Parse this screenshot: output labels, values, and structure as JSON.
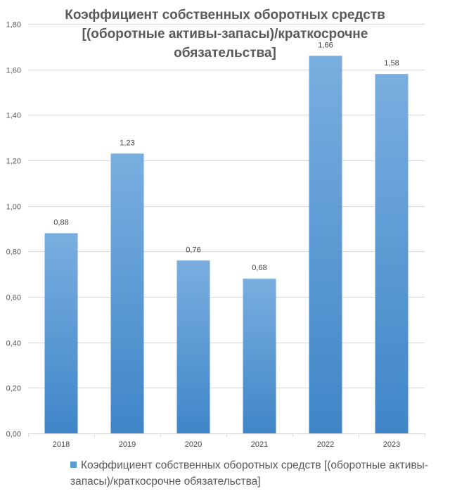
{
  "chart_data": {
    "type": "bar",
    "title_lines": [
      "Коэффициент собственных оборотных средств",
      "[(оборотные активы-запасы)/краткосрочне",
      "обязательства]"
    ],
    "categories": [
      "2018",
      "2019",
      "2020",
      "2021",
      "2022",
      "2023"
    ],
    "series": [
      {
        "name": "Коэффициент собственных оборотных средств [(оборотные активы-запасы)/краткосрочне обязательства]",
        "values": [
          0.88,
          1.23,
          0.76,
          0.68,
          1.66,
          1.58
        ],
        "data_labels": [
          "0,88",
          "1,23",
          "0,76",
          "0,68",
          "1,66",
          "1,58"
        ]
      }
    ],
    "ylim": [
      0,
      1.8
    ],
    "ytick_values": [
      0,
      0.2,
      0.4,
      0.6,
      0.8,
      1.0,
      1.2,
      1.4,
      1.6,
      1.8
    ],
    "ytick_labels": [
      "0,00",
      "0,20",
      "0,40",
      "0,60",
      "0,80",
      "1,00",
      "1,20",
      "1,40",
      "1,60",
      "1,80"
    ],
    "grid": true,
    "legend_position": "bottom",
    "bar_color": "#5b9bd5"
  }
}
